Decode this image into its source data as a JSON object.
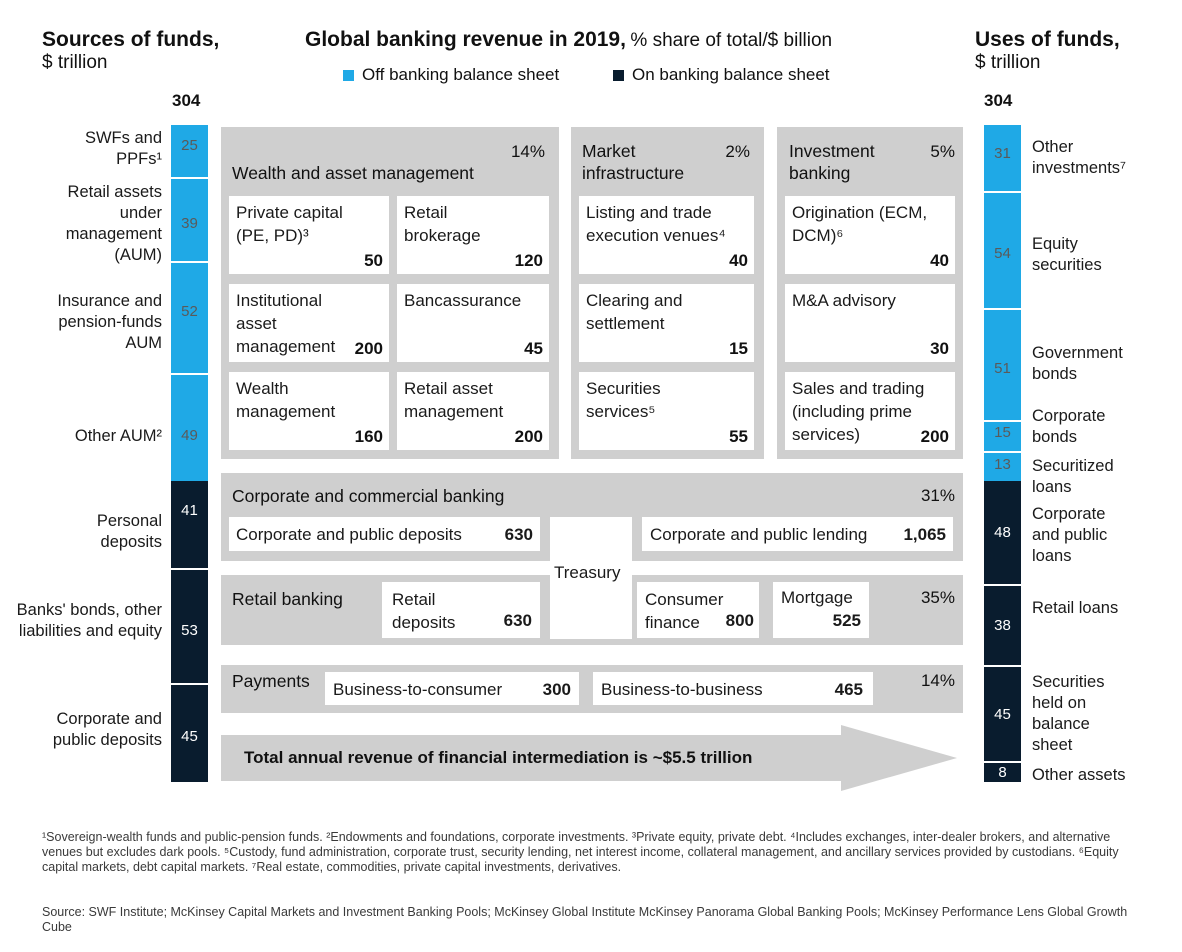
{
  "header": {
    "sources_title": "Sources of funds,",
    "sources_unit": "$ trillion",
    "main_title": "Global banking revenue in 2019,",
    "main_subtitle": "% share of total/$ billion",
    "uses_title": "Uses of funds,",
    "uses_unit": "$ trillion",
    "legend_off": "Off banking balance sheet",
    "legend_on": "On banking balance sheet",
    "sources_total": "304",
    "uses_total": "304"
  },
  "colors": {
    "off": "#1fa9e6",
    "on": "#091c2e",
    "panel": "#cfcfcf",
    "arrow": "#cfcfcf"
  },
  "sources": [
    {
      "label": "SWFs and PPFs¹",
      "value": "25",
      "sheet": "off"
    },
    {
      "label": "Retail assets under management (AUM)",
      "value": "39",
      "sheet": "off"
    },
    {
      "label": "Insurance and pension-funds AUM",
      "value": "52",
      "sheet": "off"
    },
    {
      "label": "Other AUM²",
      "value": "49",
      "sheet": "off"
    },
    {
      "label": "Personal deposits",
      "value": "41",
      "sheet": "on"
    },
    {
      "label": "Banks' bonds, other liabilities and equity",
      "value": "53",
      "sheet": "on"
    },
    {
      "label": "Corporate and public deposits",
      "value": "45",
      "sheet": "on"
    }
  ],
  "uses": [
    {
      "label": "Other investments⁷",
      "value": "31",
      "sheet": "off"
    },
    {
      "label": "Equity securities",
      "value": "54",
      "sheet": "off"
    },
    {
      "label": "Government bonds",
      "value": "51",
      "sheet": "off"
    },
    {
      "label": "Corporate bonds",
      "value": "15",
      "sheet": "off"
    },
    {
      "label": "Securitized loans",
      "value": "13",
      "sheet": "off"
    },
    {
      "label": "Corporate and public loans",
      "value": "48",
      "sheet": "on"
    },
    {
      "label": "Retail loans",
      "value": "38",
      "sheet": "on"
    },
    {
      "label": "Securities held on balance sheet",
      "value": "45",
      "sheet": "on"
    },
    {
      "label": "Other assets",
      "value": "8",
      "sheet": "on"
    }
  ],
  "wealth": {
    "title": "Wealth and asset management",
    "pct": "14%",
    "cards": [
      {
        "label": "Private capital (PE, PD)³",
        "value": "50"
      },
      {
        "label": "Retail brokerage",
        "value": "120"
      },
      {
        "label": "Institutional asset management",
        "value": "200"
      },
      {
        "label": "Bancassurance",
        "value": "45"
      },
      {
        "label": "Wealth management",
        "value": "160"
      },
      {
        "label": "Retail asset management",
        "value": "200"
      }
    ]
  },
  "market": {
    "title": "Market infrastructure",
    "pct": "2%",
    "cards": [
      {
        "label": "Listing and trade execution venues⁴",
        "value": "40"
      },
      {
        "label": "Clearing and settlement",
        "value": "15"
      },
      {
        "label": "Securities services⁵",
        "value": "55"
      }
    ]
  },
  "ib": {
    "title": "Investment banking",
    "pct": "5%",
    "cards": [
      {
        "label": "Origination (ECM, DCM)⁶",
        "value": "40"
      },
      {
        "label": "M&A advisory",
        "value": "30"
      },
      {
        "label": "Sales and trading (including prime services)",
        "value": "200"
      }
    ]
  },
  "corporate": {
    "title": "Corporate and commercial banking",
    "pct": "31%",
    "deposits_label": "Corporate and public deposits",
    "deposits_value": "630",
    "lending_label": "Corporate and public lending",
    "lending_value": "1,065"
  },
  "treasury": "Treasury",
  "retail": {
    "title": "Retail banking",
    "pct": "35%",
    "deposits_label": "Retail deposits",
    "deposits_value": "630",
    "consumer_label": "Consumer finance",
    "consumer_value": "800",
    "mortgage_label": "Mortgage",
    "mortgage_value": "525"
  },
  "payments": {
    "title": "Payments",
    "pct": "14%",
    "b2c_label": "Business-to-consumer",
    "b2c_value": "300",
    "b2b_label": "Business-to-business",
    "b2b_value": "465"
  },
  "arrow_text": "Total annual revenue of financial intermediation is ~$5.5 trillion",
  "footnotes": {
    "notes": "¹Sovereign-wealth funds and public-pension funds. ²Endowments and foundations, corporate investments. ³Private equity, private debt. ⁴Includes exchanges, inter-dealer brokers, and alternative venues but excludes dark pools. ⁵Custody, fund administration, corporate trust, security lending, net interest income, collateral management, and ancillary services provided by custodians. ⁶Equity capital markets, debt capital markets. ⁷Real estate, commodities, private capital investments, derivatives.",
    "source": "Source: SWF Institute; McKinsey Capital Markets and Investment Banking Pools; McKinsey Global Institute McKinsey Panorama Global Banking Pools; McKinsey Performance Lens Global Growth Cube"
  }
}
